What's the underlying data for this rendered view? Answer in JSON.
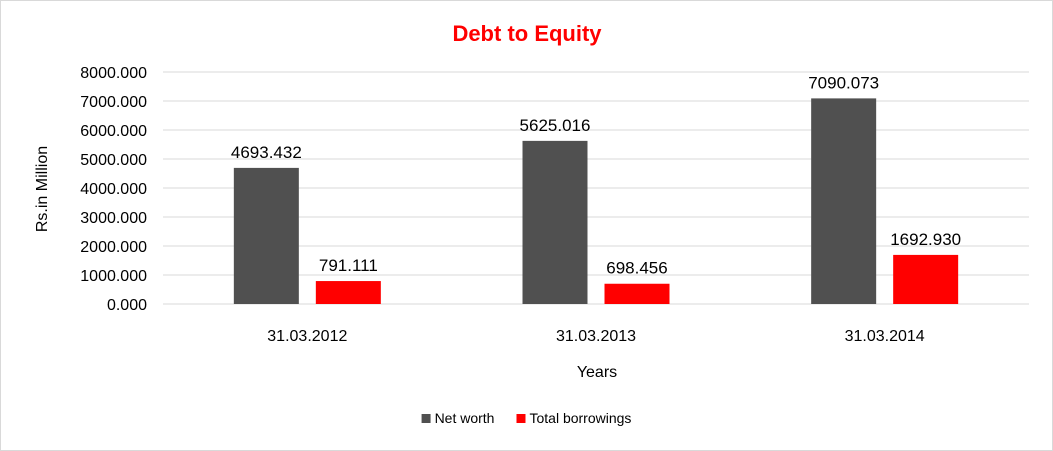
{
  "chart_data": {
    "type": "bar",
    "title": "Debt to Equity",
    "title_color": "#ff0000",
    "xlabel": "Years",
    "ylabel": "Rs.in Million",
    "categories": [
      "31.03.2012",
      "31.03.2013",
      "31.03.2014"
    ],
    "series": [
      {
        "name": "Net worth",
        "color": "#505050",
        "values": [
          4693.432,
          5625.016,
          7090.073
        ],
        "labels": [
          "4693.432",
          "5625.016",
          "7090.073"
        ]
      },
      {
        "name": "Total borrowings",
        "color": "#ff0000",
        "values": [
          791.111,
          698.456,
          1692.93
        ],
        "labels": [
          "791.111",
          "698.456",
          "1692.930"
        ]
      }
    ],
    "ylim": [
      0,
      8000
    ],
    "yticks": [
      0,
      1000,
      2000,
      3000,
      4000,
      5000,
      6000,
      7000,
      8000
    ],
    "ytick_labels": [
      "0.000",
      "1000.000",
      "2000.000",
      "3000.000",
      "4000.000",
      "5000.000",
      "6000.000",
      "7000.000",
      "8000.000"
    ],
    "grid": true,
    "legend_position": "bottom"
  }
}
